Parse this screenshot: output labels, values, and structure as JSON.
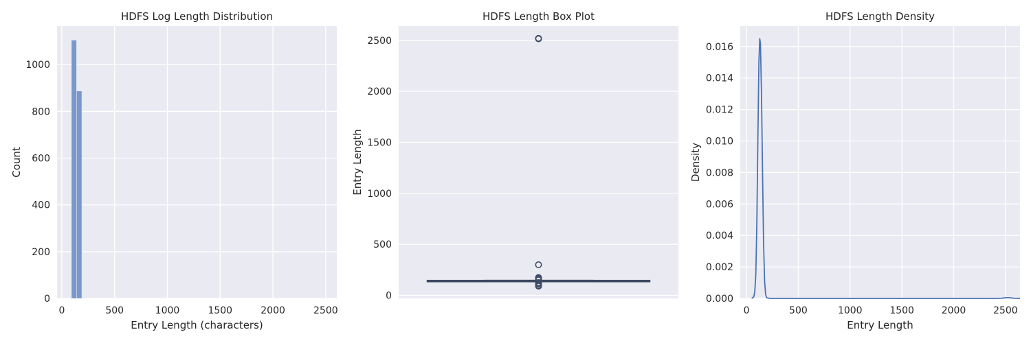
{
  "chart_data": [
    {
      "type": "bar",
      "title": "HDFS Log Length Distribution",
      "xlabel": "Entry Length (characters)",
      "ylabel": "Count",
      "xlim": [
        -45,
        2605
      ],
      "ylim": [
        0,
        1165
      ],
      "xticks": [
        0,
        500,
        1000,
        1500,
        2000,
        2500
      ],
      "yticks": [
        0,
        200,
        400,
        600,
        800,
        1000
      ],
      "bars": [
        {
          "x0": 91,
          "x1": 140,
          "value": 1105
        },
        {
          "x0": 140,
          "x1": 190,
          "value": 887
        }
      ],
      "grid": true,
      "color": "#7394c8"
    },
    {
      "type": "box",
      "title": "HDFS Length Box Plot",
      "xlabel": "",
      "ylabel": "Entry Length",
      "ylim": [
        -30,
        2640
      ],
      "yticks": [
        0,
        500,
        1000,
        1500,
        2000,
        2500
      ],
      "box": {
        "q1": 133,
        "median": 140,
        "q3": 147,
        "whisker_low": 133,
        "whisker_high": 147
      },
      "outliers": [
        2520,
        2515,
        300,
        175,
        165,
        160,
        150,
        125,
        115,
        100,
        92,
        90
      ],
      "grid": true,
      "color": "#3d4a63"
    },
    {
      "type": "line",
      "title": "HDFS Length Density",
      "xlabel": "Entry Length",
      "ylabel": "Density",
      "xlim": [
        -60,
        2640
      ],
      "ylim": [
        0,
        0.0173
      ],
      "xticks": [
        0,
        500,
        1000,
        1500,
        2000,
        2500
      ],
      "yticks": [
        0,
        0.002,
        0.004,
        0.006,
        0.008,
        0.01,
        0.012,
        0.014,
        0.016
      ],
      "ytick_labels": [
        "0.000",
        "0.002",
        "0.004",
        "0.006",
        "0.008",
        "0.010",
        "0.012",
        "0.014",
        "0.016"
      ],
      "series": [
        {
          "x": [
            50,
            70,
            80,
            90,
            100,
            110,
            120,
            128,
            135,
            145,
            155,
            165,
            175,
            185,
            195,
            210,
            230,
            300,
            500,
            1000,
            1500,
            2000,
            2400,
            2460,
            2500,
            2520,
            2540,
            2580,
            2640
          ],
          "y": [
            0,
            0.0001,
            0.0004,
            0.0015,
            0.0047,
            0.0102,
            0.015,
            0.0165,
            0.0162,
            0.013,
            0.008,
            0.0035,
            0.0011,
            0.00025,
            5e-05,
            2e-05,
            0,
            0,
            0,
            0,
            0,
            0,
            0,
            1e-05,
            4e-05,
            5e-05,
            4e-05,
            1e-05,
            0
          ]
        }
      ],
      "grid": true,
      "color": "#4c72b0"
    }
  ]
}
